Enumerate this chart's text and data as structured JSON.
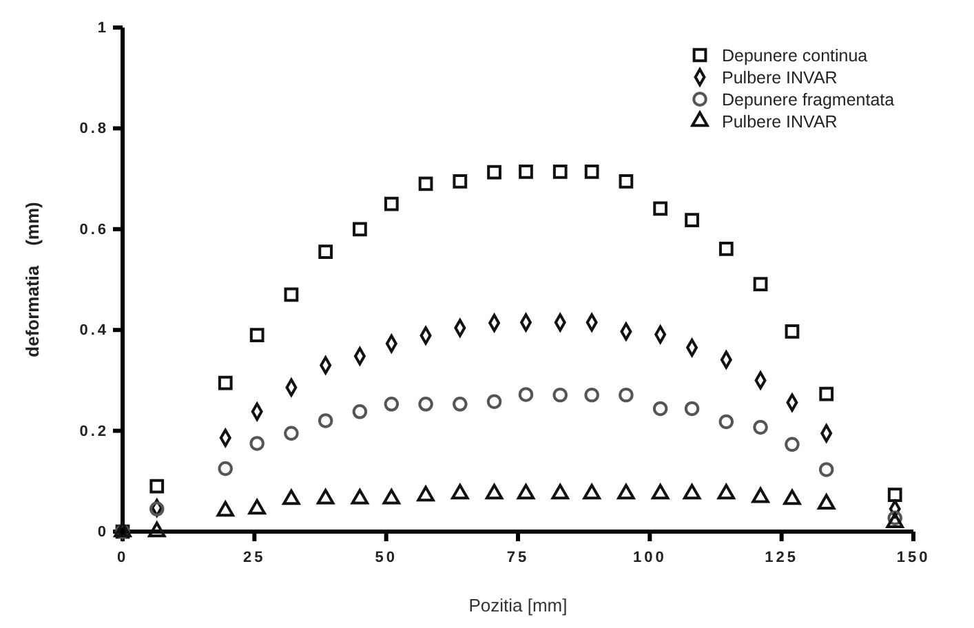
{
  "chart_data": {
    "type": "scatter",
    "xlabel": "Pozitia [mm]",
    "ylabel": "deformatia    (mm)",
    "x": [
      0,
      6.5,
      19.5,
      25.5,
      32,
      38.5,
      45,
      51,
      57.5,
      64,
      70.5,
      76.5,
      83,
      89,
      95.5,
      102,
      108,
      114.5,
      121,
      127,
      133.5,
      146.5
    ],
    "series": [
      {
        "name": "Depunere continua",
        "color": "#111111",
        "marker": "square",
        "values": [
          0,
          0.09,
          0.295,
          0.39,
          0.47,
          0.555,
          0.6,
          0.65,
          0.69,
          0.695,
          0.713,
          0.714,
          0.714,
          0.714,
          0.695,
          0.641,
          0.618,
          0.561,
          0.491,
          0.397,
          0.273,
          0.073
        ]
      },
      {
        "name": "Pulbere INVAR",
        "color": "#111111",
        "marker": "diamond",
        "values": [
          0,
          0.047,
          0.186,
          0.238,
          0.286,
          0.33,
          0.348,
          0.373,
          0.389,
          0.404,
          0.414,
          0.415,
          0.415,
          0.415,
          0.397,
          0.391,
          0.365,
          0.341,
          0.3,
          0.256,
          0.195,
          0.045
        ]
      },
      {
        "name": "Depunere fragmentata",
        "color": "#555555",
        "marker": "circle",
        "values": [
          0,
          0.045,
          0.125,
          0.175,
          0.195,
          0.22,
          0.238,
          0.253,
          0.253,
          0.253,
          0.258,
          0.272,
          0.271,
          0.271,
          0.271,
          0.244,
          0.244,
          0.218,
          0.207,
          0.173,
          0.123,
          0.027
        ]
      },
      {
        "name": "Pulbere INVAR",
        "color": "#111111",
        "marker": "triangle",
        "values": [
          0,
          0,
          0.041,
          0.045,
          0.064,
          0.065,
          0.065,
          0.065,
          0.071,
          0.075,
          0.075,
          0.075,
          0.075,
          0.075,
          0.075,
          0.075,
          0.075,
          0.075,
          0.068,
          0.064,
          0.055,
          0.018
        ]
      }
    ],
    "xlim": [
      0,
      150
    ],
    "xticks": [
      0,
      25,
      50,
      75,
      100,
      125,
      150
    ],
    "ylim": [
      0,
      1
    ],
    "yticks": [
      0,
      0.2,
      0.4,
      0.6,
      0.8,
      1
    ],
    "grid": false,
    "legend": "top right"
  }
}
